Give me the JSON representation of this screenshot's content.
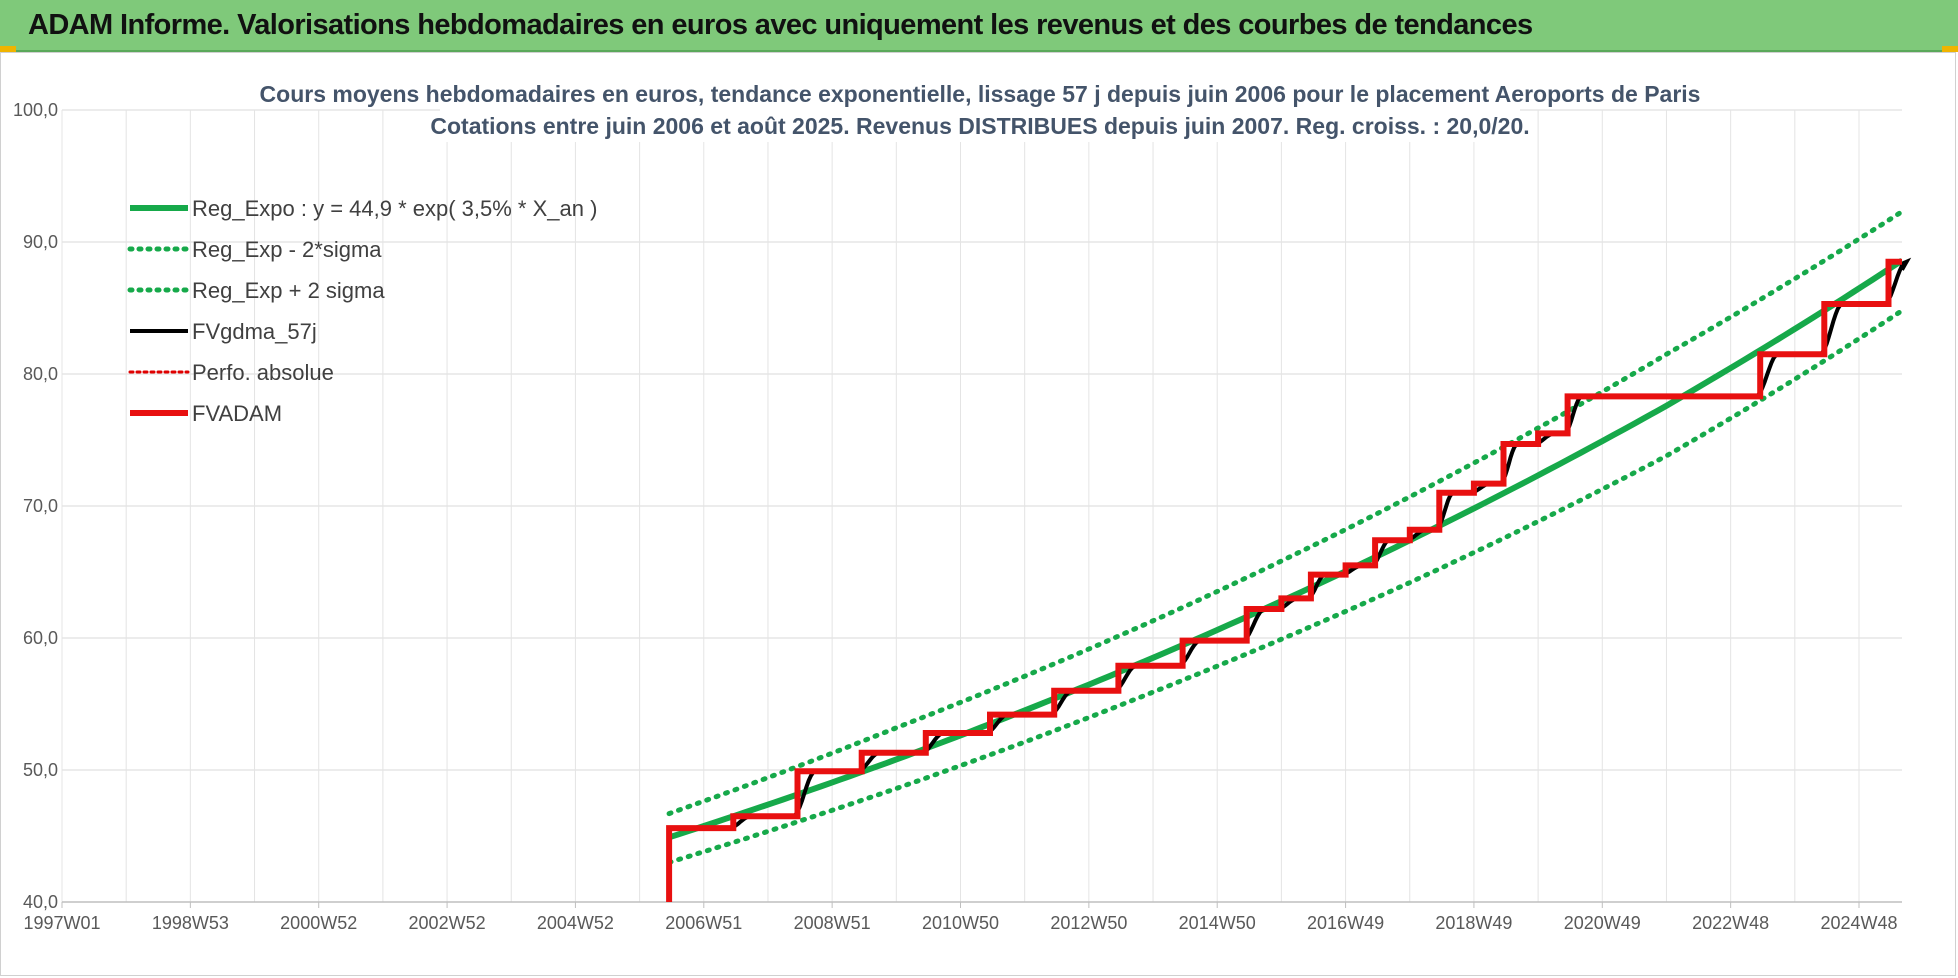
{
  "banner": {
    "title": "ADAM Informe. Valorisations hebdomadaires en euros avec uniquement les revenus et des courbes de tendances"
  },
  "colors": {
    "banner_bg": "#7fc97a",
    "reg_expo": "#16a94a",
    "sigma_bands": "#16a94a",
    "fvgdma": "#000000",
    "perfo_absolue": "#e00000",
    "fvadam": "#e81010",
    "grid": "#d9d9d9",
    "title_text": "#44546a"
  },
  "chart_data": {
    "type": "line",
    "title_lines": [
      "Cours moyens hebdomadaires en euros, tendance exponentielle, lissage 57 j depuis juin 2006 pour le placement  Aeroports de Paris",
      "Cotations entre juin 2006 et août 2025. Revenus DISTRIBUES depuis juin 2007. Reg. croiss. : 20,0/20."
    ],
    "y_axis": {
      "min": 40,
      "max": 100,
      "ticks": [
        "40,0",
        "50,0",
        "60,0",
        "70,0",
        "80,0",
        "90,0",
        "100,0"
      ]
    },
    "x_axis": {
      "start_year": 1997.0,
      "end_year": 2025.67,
      "ticks": [
        {
          "label": "1997W01",
          "year": 1997.0
        },
        {
          "label": "1998W53",
          "year": 1999.0
        },
        {
          "label": "2000W52",
          "year": 2001.0
        },
        {
          "label": "2002W52",
          "year": 2003.0
        },
        {
          "label": "2004W52",
          "year": 2005.0
        },
        {
          "label": "2006W51",
          "year": 2007.0
        },
        {
          "label": "2008W51",
          "year": 2009.0
        },
        {
          "label": "2010W50",
          "year": 2011.0
        },
        {
          "label": "2012W50",
          "year": 2013.0
        },
        {
          "label": "2014W50",
          "year": 2015.0
        },
        {
          "label": "2016W49",
          "year": 2017.0
        },
        {
          "label": "2018W49",
          "year": 2019.0
        },
        {
          "label": "2020W49",
          "year": 2021.0
        },
        {
          "label": "2022W48",
          "year": 2023.0
        },
        {
          "label": "2024W48",
          "year": 2025.0
        }
      ]
    },
    "legend_position": "top-left",
    "grid": true,
    "series": [
      {
        "name": "Reg_Expo : y = 44,9 * exp( 3,5% *  X_an )",
        "style": "solid",
        "color": "#16a94a",
        "points": [
          [
            2006.46,
            44.9
          ],
          [
            2010.0,
            50.8
          ],
          [
            2014.0,
            58.5
          ],
          [
            2018.0,
            67.4
          ],
          [
            2022.0,
            77.6
          ],
          [
            2025.67,
            88.6
          ]
        ]
      },
      {
        "name": "Reg_Exp - 2*sigma",
        "style": "dotted",
        "color": "#16a94a",
        "points": [
          [
            2006.46,
            43.0
          ],
          [
            2010.0,
            48.6
          ],
          [
            2014.0,
            55.9
          ],
          [
            2018.0,
            64.2
          ],
          [
            2022.0,
            73.8
          ],
          [
            2025.67,
            84.8
          ]
        ]
      },
      {
        "name": "Reg_Exp + 2 sigma",
        "style": "dotted",
        "color": "#16a94a",
        "points": [
          [
            2006.46,
            46.7
          ],
          [
            2010.0,
            53.2
          ],
          [
            2014.0,
            61.3
          ],
          [
            2018.0,
            70.7
          ],
          [
            2022.0,
            81.5
          ],
          [
            2025.67,
            92.3
          ]
        ]
      },
      {
        "name": "FVgdma_57j",
        "style": "smooth-steps",
        "color": "#000000"
      },
      {
        "name": "Perfo. absolue",
        "style": "dotted",
        "color": "#e00000"
      },
      {
        "name": "FVADAM",
        "style": "steps",
        "color": "#e81010",
        "start": [
          2006.46,
          40.0
        ],
        "steps": [
          [
            2006.46,
            45.6
          ],
          [
            2007.46,
            46.5
          ],
          [
            2008.46,
            49.9
          ],
          [
            2009.46,
            51.3
          ],
          [
            2010.46,
            52.8
          ],
          [
            2011.46,
            54.2
          ],
          [
            2012.46,
            56.0
          ],
          [
            2013.46,
            57.9
          ],
          [
            2014.46,
            59.8
          ],
          [
            2015.46,
            62.2
          ],
          [
            2016.0,
            63.0
          ],
          [
            2016.46,
            64.8
          ],
          [
            2017.0,
            65.5
          ],
          [
            2017.46,
            67.4
          ],
          [
            2018.0,
            68.2
          ],
          [
            2018.46,
            71.0
          ],
          [
            2019.0,
            71.7
          ],
          [
            2019.46,
            74.7
          ],
          [
            2020.0,
            75.5
          ],
          [
            2020.46,
            78.3
          ],
          [
            2023.46,
            81.5
          ],
          [
            2024.46,
            85.3
          ],
          [
            2025.46,
            88.5
          ]
        ],
        "end_year": 2025.67
      }
    ]
  }
}
